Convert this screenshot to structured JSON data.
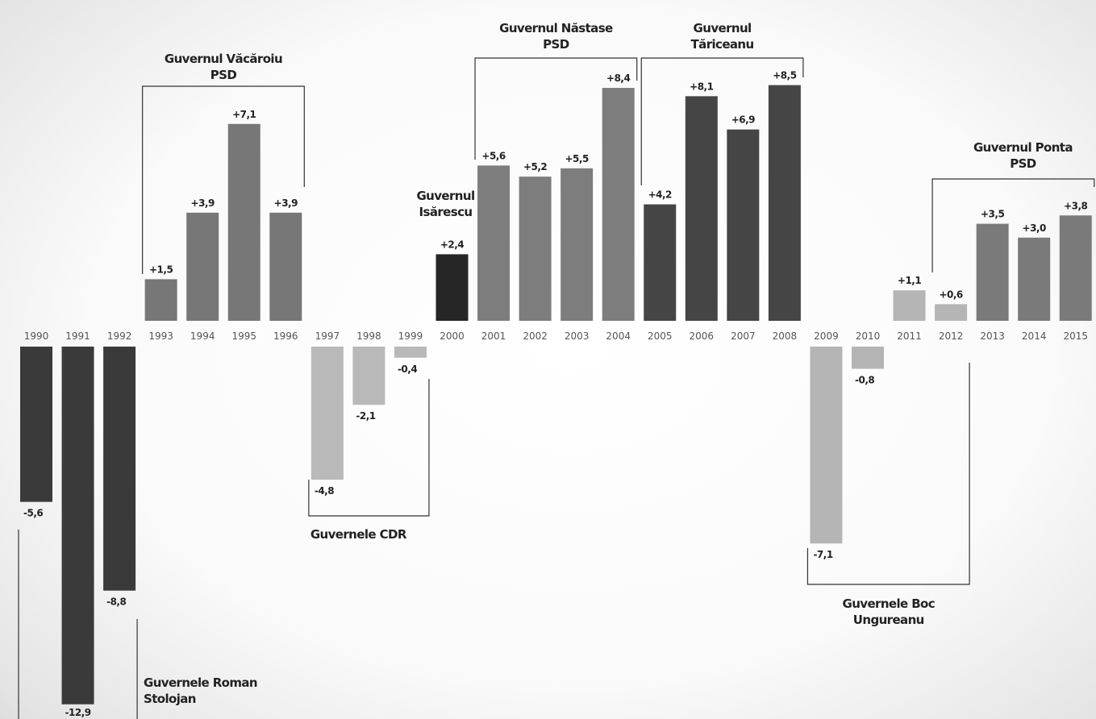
{
  "chart_data": {
    "type": "bar",
    "xlabel": "",
    "ylabel": "",
    "categories": [
      "1990",
      "1991",
      "1992",
      "1993",
      "1994",
      "1995",
      "1996",
      "1997",
      "1998",
      "1999",
      "2000",
      "2001",
      "2002",
      "2003",
      "2004",
      "2005",
      "2006",
      "2007",
      "2008",
      "2009",
      "2010",
      "2011",
      "2012",
      "2013",
      "2014",
      "2015"
    ],
    "values": [
      -5.6,
      -12.9,
      -8.8,
      1.5,
      3.9,
      7.1,
      3.9,
      -4.8,
      -2.1,
      -0.4,
      2.4,
      5.6,
      5.2,
      5.5,
      8.4,
      4.2,
      8.1,
      6.9,
      8.5,
      -7.1,
      -0.8,
      1.1,
      0.6,
      3.5,
      3.0,
      3.8
    ],
    "value_labels": [
      "-5,6",
      "-12,9",
      "-8,8",
      "+1,5",
      "+3,9",
      "+7,1",
      "+3,9",
      "-4,8",
      "-2,1",
      "-0,4",
      "+2,4",
      "+5,6",
      "+5,2",
      "+5,5",
      "+8,4",
      "+4,2",
      "+8,1",
      "+6,9",
      "+8,5",
      "-7,1",
      "-0,8",
      "+1,1",
      "+0,6",
      "+3,5",
      "+3,0",
      "+3,8"
    ],
    "colors": {
      "roman_stolojan": "#3a3a3a",
      "vacaroiu": "#777777",
      "cdr": "#b9b9b9",
      "isarescu": "#262626",
      "nastase": "#7d7d7d",
      "tariceanu": "#454545",
      "boc_ungureanu": "#b5b5b5",
      "ponta": "#7a7a7a"
    },
    "groups": [
      {
        "key": "roman_stolojan",
        "lines": [
          "Guvernele Roman",
          "Stolojan"
        ],
        "years": [
          "1990",
          "1991",
          "1992"
        ]
      },
      {
        "key": "vacaroiu",
        "lines": [
          "Guvernul Văcăroiu",
          "PSD"
        ],
        "years": [
          "1993",
          "1994",
          "1995",
          "1996"
        ]
      },
      {
        "key": "cdr",
        "lines": [
          "Guvernele CDR"
        ],
        "years": [
          "1997",
          "1998",
          "1999"
        ]
      },
      {
        "key": "isarescu",
        "lines": [
          "Guvernul",
          "Isărescu"
        ],
        "years": [
          "2000"
        ]
      },
      {
        "key": "nastase",
        "lines": [
          "Guvernul Năstase",
          "PSD"
        ],
        "years": [
          "2001",
          "2002",
          "2003",
          "2004"
        ]
      },
      {
        "key": "tariceanu",
        "lines": [
          "Guvernul",
          "Tăriceanu"
        ],
        "years": [
          "2005",
          "2006",
          "2007",
          "2008"
        ]
      },
      {
        "key": "boc_ungureanu",
        "lines": [
          "Guvernele Boc",
          "Ungureanu"
        ],
        "years": [
          "2009",
          "2010",
          "2011",
          "2012"
        ]
      },
      {
        "key": "ponta",
        "lines": [
          "Guvernul Ponta",
          "PSD"
        ],
        "years": [
          "2012",
          "2013",
          "2014",
          "2015"
        ]
      }
    ],
    "grid": false,
    "legend": "none"
  }
}
